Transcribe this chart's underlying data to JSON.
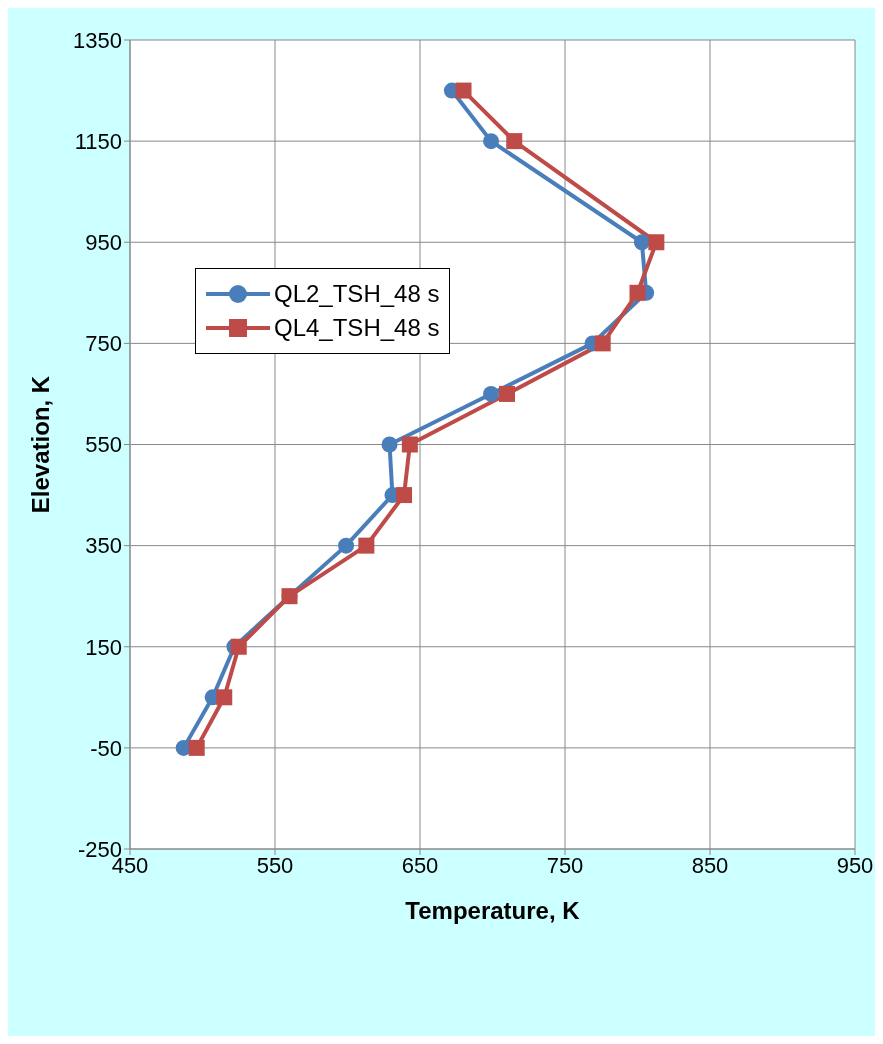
{
  "chart_data": {
    "type": "line",
    "xlabel": "Temperature, K",
    "ylabel": "Elevation, K",
    "xlim": [
      450,
      950
    ],
    "xticks": [
      450,
      550,
      650,
      750,
      850,
      950
    ],
    "ylim": [
      -250,
      1350
    ],
    "yticks": [
      -250,
      -50,
      150,
      350,
      550,
      750,
      950,
      1150,
      1350
    ],
    "grid": true,
    "legend": "top left",
    "line_style": "solid",
    "series": [
      {
        "name": "QL2_TSH_48 s",
        "color": "#4a7ebb",
        "marker": "circle",
        "x": [
          672,
          699,
          803,
          806,
          769,
          699,
          629,
          631,
          599,
          560,
          522,
          507,
          487
        ],
        "values": [
          1250,
          1150,
          950,
          850,
          750,
          650,
          550,
          450,
          350,
          250,
          150,
          50,
          -50
        ]
      },
      {
        "name": "QL4_TSH_48 s",
        "color": "#be4b48",
        "marker": "square",
        "x": [
          680,
          715,
          813,
          800,
          776,
          710,
          643,
          639,
          613,
          560,
          525,
          515,
          496
        ],
        "values": [
          1250,
          1150,
          950,
          850,
          750,
          650,
          550,
          450,
          350,
          250,
          150,
          50,
          -50
        ]
      }
    ]
  }
}
